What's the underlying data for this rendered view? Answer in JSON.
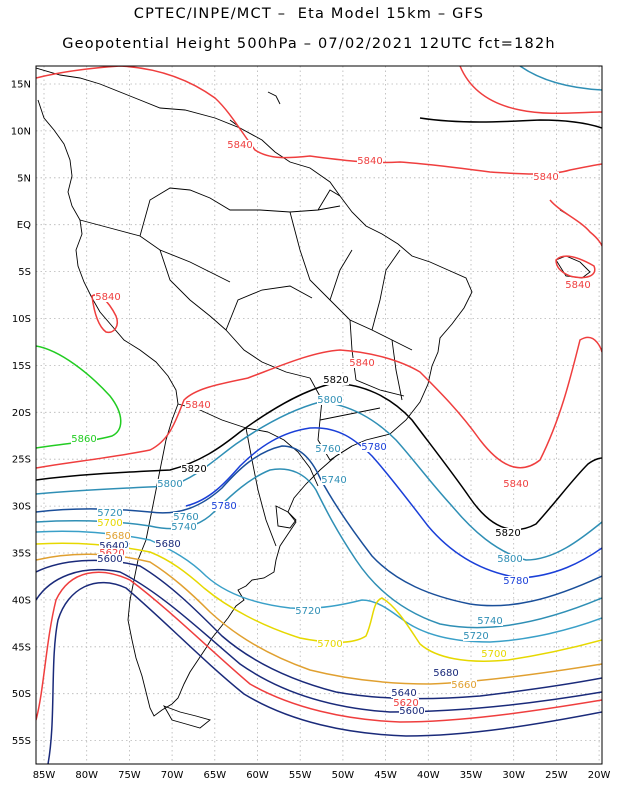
{
  "title": {
    "line1": "CPTEC/INPE/MCT –  Eta Model 15km – GFS",
    "line2": "Geopotential Height 500hPa – 07/02/2021 12UTC fct=182h"
  },
  "lat_ticks": [
    "15N",
    "10N",
    "5N",
    "EQ",
    "5S",
    "10S",
    "15S",
    "20S",
    "25S",
    "30S",
    "35S",
    "40S",
    "45S",
    "50S",
    "55S"
  ],
  "lon_ticks": [
    "85W",
    "80W",
    "75W",
    "70W",
    "65W",
    "60W",
    "55W",
    "50W",
    "45W",
    "40W",
    "35W",
    "30W",
    "25W",
    "20W"
  ],
  "contour_labels": [
    {
      "text": "5840",
      "color": "#ef3e3e"
    },
    {
      "text": "5840",
      "color": "#ef3e3e"
    },
    {
      "text": "5840",
      "color": "#ef3e3e"
    },
    {
      "text": "5840",
      "color": "#ef3e3e"
    },
    {
      "text": "5840",
      "color": "#ef3e3e"
    },
    {
      "text": "5840",
      "color": "#ef3e3e"
    },
    {
      "text": "5840",
      "color": "#ef3e3e"
    },
    {
      "text": "5840",
      "color": "#ef3e3e"
    },
    {
      "text": "5860",
      "color": "#22cc22"
    },
    {
      "text": "5820",
      "color": "#000000"
    },
    {
      "text": "5820",
      "color": "#000000"
    },
    {
      "text": "5820",
      "color": "#000000"
    },
    {
      "text": "5800",
      "color": "#2f8fb5"
    },
    {
      "text": "5800",
      "color": "#2f8fb5"
    },
    {
      "text": "5800",
      "color": "#2f8fb5"
    },
    {
      "text": "5780",
      "color": "#1a3fd8"
    },
    {
      "text": "5780",
      "color": "#1a3fd8"
    },
    {
      "text": "5780",
      "color": "#1a3fd8"
    },
    {
      "text": "5760",
      "color": "#2f8fb5"
    },
    {
      "text": "5760",
      "color": "#2f8fb5"
    },
    {
      "text": "5760",
      "color": "#1a4f9a"
    },
    {
      "text": "5740",
      "color": "#2f8fb5"
    },
    {
      "text": "5740",
      "color": "#2f8fb5"
    },
    {
      "text": "5740",
      "color": "#2f8fb5"
    },
    {
      "text": "5720",
      "color": "#2f8fb5"
    },
    {
      "text": "5720",
      "color": "#2f8fb5"
    },
    {
      "text": "5720",
      "color": "#2f8fb5"
    },
    {
      "text": "5700",
      "color": "#e6d800"
    },
    {
      "text": "5700",
      "color": "#e6d800"
    },
    {
      "text": "5700",
      "color": "#e6d800"
    },
    {
      "text": "5680",
      "color": "#e0a030"
    },
    {
      "text": "5680",
      "color": "#1a2a7a"
    },
    {
      "text": "5680",
      "color": "#1a2a7a"
    },
    {
      "text": "5660",
      "color": "#e0a030"
    },
    {
      "text": "5640",
      "color": "#1a2a7a"
    },
    {
      "text": "5640",
      "color": "#1a2a7a"
    },
    {
      "text": "5620",
      "color": "#ef3e3e"
    },
    {
      "text": "5620",
      "color": "#ef3e3e"
    },
    {
      "text": "5600",
      "color": "#1a2a7a"
    },
    {
      "text": "5600",
      "color": "#1a2a7a"
    }
  ],
  "colors": {
    "h5840": "#ef3e3e",
    "h5860": "#22cc22",
    "h5820": "#000000",
    "h5800": "#2f8fb5",
    "h5780": "#1a3fd8",
    "h5760": "#1a4f9a",
    "h5740": "#2f8fb5",
    "h5720": "#3aa0c8",
    "h5700": "#e6d800",
    "h5680": "#e0a030",
    "h5640": "#1a2a7a",
    "h5620": "#ef3e3e",
    "h5600": "#1a2a7a"
  }
}
